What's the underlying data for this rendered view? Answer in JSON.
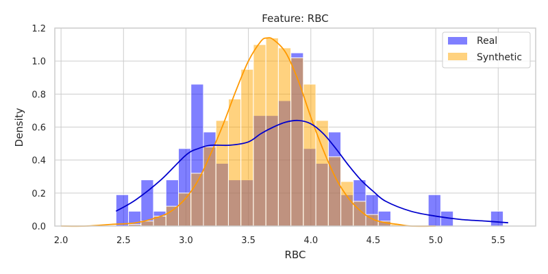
{
  "chart_data": {
    "type": "bar",
    "title": "Feature: RBC",
    "xlabel": "RBC",
    "ylabel": "Density",
    "xlim": [
      1.95,
      5.8
    ],
    "ylim": [
      0,
      1.2
    ],
    "xticks": [
      "2.0",
      "2.5",
      "3.0",
      "3.5",
      "4.0",
      "4.5",
      "5.0",
      "5.5"
    ],
    "xtick_values": [
      2.0,
      2.5,
      3.0,
      3.5,
      4.0,
      4.5,
      5.0,
      5.5
    ],
    "yticks": [
      "0.0",
      "0.2",
      "0.4",
      "0.6",
      "0.8",
      "1.0",
      "1.2"
    ],
    "ytick_values": [
      0.0,
      0.2,
      0.4,
      0.6,
      0.8,
      1.0,
      1.2
    ],
    "grid": true,
    "legend_position": "top-right",
    "bin_start": 2.44,
    "bin_width": 0.1,
    "series": [
      {
        "name": "Real",
        "color": "#0000ff",
        "kde_color": "#0000cd",
        "values": [
          0.19,
          0.09,
          0.28,
          0.09,
          0.28,
          0.47,
          0.86,
          0.57,
          0.38,
          0.28,
          0.28,
          0.67,
          0.67,
          0.76,
          1.05,
          0.47,
          0.38,
          0.57,
          0.19,
          0.28,
          0.19,
          0.09,
          0.0,
          0.0,
          0.0,
          0.19,
          0.09,
          0.0,
          0.0,
          0.0,
          0.09
        ],
        "kde_x": [
          2.44,
          2.6,
          2.8,
          3.0,
          3.1,
          3.2,
          3.35,
          3.5,
          3.6,
          3.7,
          3.8,
          3.9,
          4.0,
          4.1,
          4.2,
          4.3,
          4.4,
          4.5,
          4.6,
          4.8,
          5.0,
          5.2,
          5.4,
          5.58
        ],
        "kde_y": [
          0.09,
          0.16,
          0.28,
          0.43,
          0.47,
          0.49,
          0.49,
          0.51,
          0.56,
          0.6,
          0.63,
          0.64,
          0.62,
          0.56,
          0.47,
          0.37,
          0.28,
          0.21,
          0.15,
          0.09,
          0.06,
          0.04,
          0.03,
          0.02
        ]
      },
      {
        "name": "Synthetic",
        "color": "#ffa500",
        "kde_color": "#ff9900",
        "values": [
          0.0,
          0.01,
          0.03,
          0.06,
          0.12,
          0.2,
          0.32,
          0.48,
          0.64,
          0.77,
          0.95,
          1.1,
          1.14,
          1.08,
          1.02,
          0.86,
          0.64,
          0.42,
          0.27,
          0.15,
          0.07,
          0.03,
          0.01,
          0.0,
          0.0,
          0.0,
          0.0,
          0.0,
          0.0,
          0.0,
          0.0
        ],
        "kde_x": [
          2.0,
          2.2,
          2.4,
          2.6,
          2.8,
          2.9,
          3.0,
          3.1,
          3.2,
          3.3,
          3.4,
          3.5,
          3.6,
          3.65,
          3.7,
          3.8,
          3.9,
          4.0,
          4.1,
          4.2,
          4.3,
          4.4,
          4.5,
          4.6,
          4.7,
          4.8,
          5.0
        ],
        "kde_y": [
          0.0,
          0.0,
          0.01,
          0.02,
          0.06,
          0.1,
          0.17,
          0.28,
          0.44,
          0.62,
          0.82,
          1.0,
          1.12,
          1.14,
          1.13,
          1.05,
          0.88,
          0.66,
          0.46,
          0.29,
          0.17,
          0.09,
          0.04,
          0.02,
          0.01,
          0.0,
          0.0
        ]
      }
    ]
  }
}
